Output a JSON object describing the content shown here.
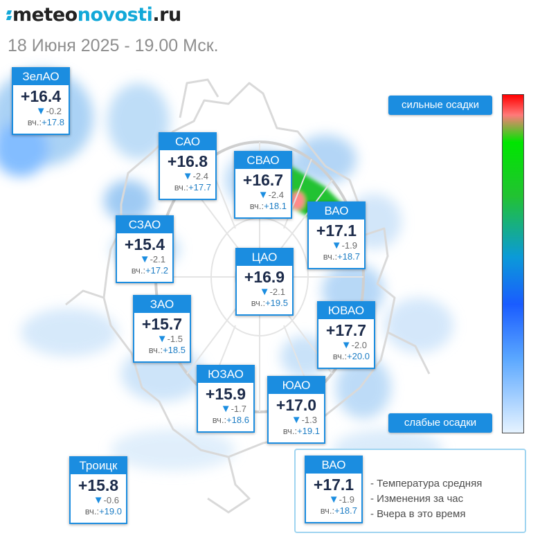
{
  "header": {
    "logo_part1": "meteo",
    "logo_part2": "novosti",
    "logo_part3": ".ru",
    "date_text": "18 Июня 2025 - 19.00 Мск."
  },
  "colors": {
    "accent": "#1b8de0",
    "logo_accent": "#12a8d8",
    "precip_light": "#5aa7ff",
    "precip_heavy": "#ff0000",
    "precip_mid": "#00e600"
  },
  "yesterday_label": "вч.:",
  "districts": [
    {
      "id": "zelao",
      "name": "ЗелАО",
      "temp": "+16.4",
      "change": "-0.2",
      "yesterday": "+17.8"
    },
    {
      "id": "sao",
      "name": "САО",
      "temp": "+16.8",
      "change": "-2.4",
      "yesterday": "+17.7"
    },
    {
      "id": "svao",
      "name": "СВАО",
      "temp": "+16.7",
      "change": "-2.4",
      "yesterday": "+18.1"
    },
    {
      "id": "vao",
      "name": "ВАО",
      "temp": "+17.1",
      "change": "-1.9",
      "yesterday": "+18.7"
    },
    {
      "id": "szao",
      "name": "СЗАО",
      "temp": "+15.4",
      "change": "-2.1",
      "yesterday": "+17.2"
    },
    {
      "id": "tsao",
      "name": "ЦАО",
      "temp": "+16.9",
      "change": "-2.1",
      "yesterday": "+19.5"
    },
    {
      "id": "zao",
      "name": "ЗАО",
      "temp": "+15.7",
      "change": "-1.5",
      "yesterday": "+18.5"
    },
    {
      "id": "yuvao",
      "name": "ЮВАО",
      "temp": "+17.7",
      "change": "-2.0",
      "yesterday": "+20.0"
    },
    {
      "id": "yuzao",
      "name": "ЮЗАО",
      "temp": "+15.9",
      "change": "-1.7",
      "yesterday": "+18.6"
    },
    {
      "id": "yuao",
      "name": "ЮАО",
      "temp": "+17.0",
      "change": "-1.3",
      "yesterday": "+19.1"
    },
    {
      "id": "troitsk",
      "name": "Троицк",
      "temp": "+15.8",
      "change": "-0.6",
      "yesterday": "+19.0"
    }
  ],
  "legend": {
    "heavy_label": "сильные осадки",
    "light_label": "слабые осадки",
    "key": {
      "sample_name": "ВАО",
      "sample_temp": "+17.1",
      "sample_change": "-1.9",
      "sample_yesterday": "+18.7",
      "line1": "- Температура средняя",
      "line2": "- Изменения за час",
      "line3": "- Вчера в это время"
    }
  }
}
